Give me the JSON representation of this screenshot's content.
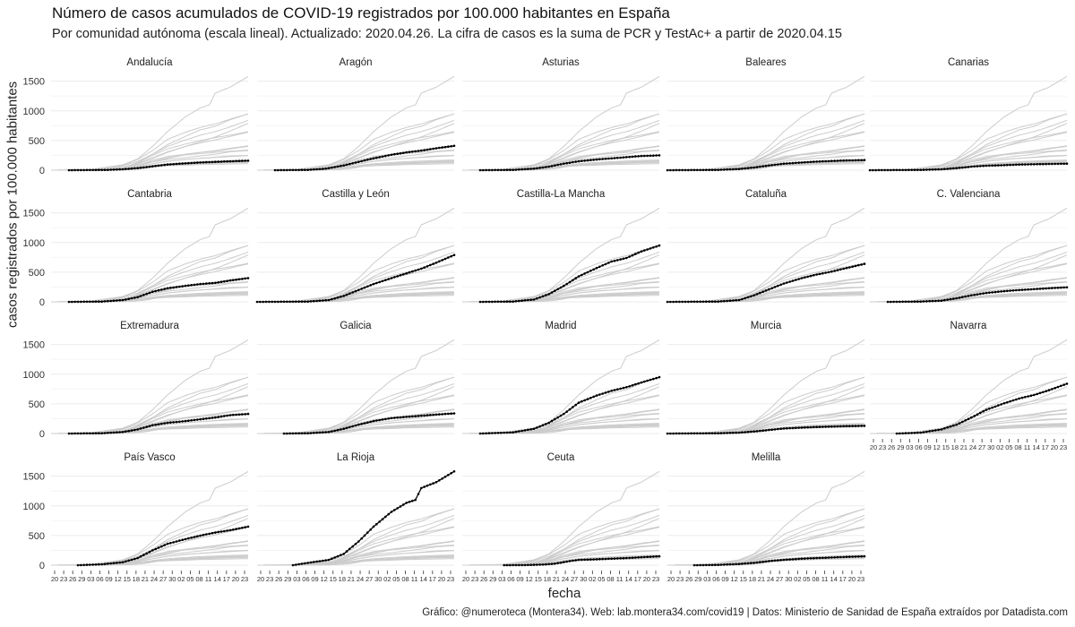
{
  "title": "Número de casos acumulados de COVID-19 registrados por 100.000 habitantes en España",
  "subtitle": "Por comunidad autónoma (escala lineal). Actualizado: 2020.04.26. La cifra de casos es la suma de PCR y TestAc+ a partir de 2020.04.15",
  "caption": "Gráfico: @numeroteca (Montera34). Web: lab.montera34.com/covid19 | Datos: Ministerio de Sanidad de España extraídos por Datadista.com",
  "colors": {
    "highlight": "#000000",
    "background_lines": "#cccccc",
    "grid": "#ebebeb"
  },
  "chart_data": {
    "type": "line",
    "xlabel": "fecha",
    "ylabel": "casos registrados por 100.000 habitantes",
    "ylim": [
      0,
      1600
    ],
    "yticks": [
      0,
      500,
      1000,
      1500
    ],
    "xlim": [
      "2020-02-20",
      "2020-04-26"
    ],
    "xticks": [
      "20",
      "23",
      "26",
      "29",
      "03",
      "06",
      "09",
      "12",
      "15",
      "18",
      "21",
      "24",
      "27",
      "30",
      "02",
      "05",
      "08",
      "11",
      "14",
      "17",
      "20",
      "23"
    ],
    "grid": true,
    "facets": "by region, 5 columns",
    "series": [
      {
        "name": "Andalucía",
        "start": "2020-02-26",
        "points": [
          [
            "2020-03-10",
            5
          ],
          [
            "2020-03-15",
            15
          ],
          [
            "2020-03-20",
            35
          ],
          [
            "2020-03-25",
            65
          ],
          [
            "2020-03-30",
            95
          ],
          [
            "2020-04-05",
            115
          ],
          [
            "2020-04-10",
            130
          ],
          [
            "2020-04-15",
            140
          ],
          [
            "2020-04-20",
            150
          ],
          [
            "2020-04-26",
            160
          ]
        ]
      },
      {
        "name": "Aragón",
        "start": "2020-02-26",
        "points": [
          [
            "2020-03-08",
            5
          ],
          [
            "2020-03-14",
            25
          ],
          [
            "2020-03-20",
            80
          ],
          [
            "2020-03-25",
            140
          ],
          [
            "2020-03-30",
            200
          ],
          [
            "2020-04-05",
            260
          ],
          [
            "2020-04-10",
            300
          ],
          [
            "2020-04-15",
            330
          ],
          [
            "2020-04-20",
            370
          ],
          [
            "2020-04-26",
            410
          ]
        ]
      },
      {
        "name": "Asturias",
        "start": "2020-02-26",
        "points": [
          [
            "2020-03-08",
            5
          ],
          [
            "2020-03-15",
            25
          ],
          [
            "2020-03-20",
            60
          ],
          [
            "2020-03-25",
            110
          ],
          [
            "2020-03-30",
            150
          ],
          [
            "2020-04-05",
            180
          ],
          [
            "2020-04-10",
            200
          ],
          [
            "2020-04-15",
            220
          ],
          [
            "2020-04-20",
            240
          ],
          [
            "2020-04-26",
            250
          ]
        ]
      },
      {
        "name": "Baleares",
        "start": "2020-02-20",
        "points": [
          [
            "2020-03-08",
            5
          ],
          [
            "2020-03-15",
            20
          ],
          [
            "2020-03-20",
            45
          ],
          [
            "2020-03-25",
            80
          ],
          [
            "2020-03-30",
            110
          ],
          [
            "2020-04-05",
            130
          ],
          [
            "2020-04-10",
            145
          ],
          [
            "2020-04-15",
            155
          ],
          [
            "2020-04-20",
            165
          ],
          [
            "2020-04-26",
            170
          ]
        ]
      },
      {
        "name": "Canarias",
        "start": "2020-02-20",
        "points": [
          [
            "2020-03-08",
            5
          ],
          [
            "2020-03-15",
            15
          ],
          [
            "2020-03-20",
            35
          ],
          [
            "2020-03-25",
            60
          ],
          [
            "2020-03-30",
            75
          ],
          [
            "2020-04-05",
            85
          ],
          [
            "2020-04-10",
            95
          ],
          [
            "2020-04-15",
            100
          ],
          [
            "2020-04-20",
            105
          ],
          [
            "2020-04-26",
            110
          ]
        ]
      },
      {
        "name": "Cantabria",
        "start": "2020-02-26",
        "points": [
          [
            "2020-03-08",
            5
          ],
          [
            "2020-03-15",
            30
          ],
          [
            "2020-03-20",
            80
          ],
          [
            "2020-03-25",
            170
          ],
          [
            "2020-03-30",
            230
          ],
          [
            "2020-04-05",
            270
          ],
          [
            "2020-04-10",
            300
          ],
          [
            "2020-04-15",
            320
          ],
          [
            "2020-04-20",
            360
          ],
          [
            "2020-04-26",
            400
          ]
        ]
      },
      {
        "name": "Castilla y León",
        "start": "2020-02-20",
        "points": [
          [
            "2020-03-08",
            5
          ],
          [
            "2020-03-15",
            30
          ],
          [
            "2020-03-20",
            100
          ],
          [
            "2020-03-25",
            200
          ],
          [
            "2020-03-30",
            300
          ],
          [
            "2020-04-05",
            400
          ],
          [
            "2020-04-10",
            480
          ],
          [
            "2020-04-15",
            560
          ],
          [
            "2020-04-20",
            660
          ],
          [
            "2020-04-26",
            790
          ]
        ]
      },
      {
        "name": "Castilla-La Mancha",
        "start": "2020-02-26",
        "points": [
          [
            "2020-03-08",
            5
          ],
          [
            "2020-03-15",
            40
          ],
          [
            "2020-03-20",
            130
          ],
          [
            "2020-03-25",
            270
          ],
          [
            "2020-03-30",
            430
          ],
          [
            "2020-04-05",
            570
          ],
          [
            "2020-04-10",
            680
          ],
          [
            "2020-04-15",
            740
          ],
          [
            "2020-04-20",
            850
          ],
          [
            "2020-04-26",
            950
          ]
        ]
      },
      {
        "name": "Cataluña",
        "start": "2020-02-20",
        "points": [
          [
            "2020-03-08",
            5
          ],
          [
            "2020-03-15",
            30
          ],
          [
            "2020-03-20",
            110
          ],
          [
            "2020-03-25",
            210
          ],
          [
            "2020-03-30",
            310
          ],
          [
            "2020-04-05",
            400
          ],
          [
            "2020-04-10",
            460
          ],
          [
            "2020-04-15",
            510
          ],
          [
            "2020-04-20",
            570
          ],
          [
            "2020-04-26",
            640
          ]
        ]
      },
      {
        "name": "C. Valenciana",
        "start": "2020-02-26",
        "points": [
          [
            "2020-03-08",
            5
          ],
          [
            "2020-03-15",
            20
          ],
          [
            "2020-03-20",
            60
          ],
          [
            "2020-03-25",
            110
          ],
          [
            "2020-03-30",
            150
          ],
          [
            "2020-04-05",
            180
          ],
          [
            "2020-04-10",
            200
          ],
          [
            "2020-04-15",
            215
          ],
          [
            "2020-04-20",
            230
          ],
          [
            "2020-04-26",
            245
          ]
        ]
      },
      {
        "name": "Extremadura",
        "start": "2020-02-26",
        "points": [
          [
            "2020-03-08",
            5
          ],
          [
            "2020-03-15",
            25
          ],
          [
            "2020-03-20",
            70
          ],
          [
            "2020-03-25",
            140
          ],
          [
            "2020-03-30",
            180
          ],
          [
            "2020-04-05",
            210
          ],
          [
            "2020-04-10",
            240
          ],
          [
            "2020-04-15",
            270
          ],
          [
            "2020-04-20",
            310
          ],
          [
            "2020-04-26",
            330
          ]
        ]
      },
      {
        "name": "Galicia",
        "start": "2020-02-29",
        "points": [
          [
            "2020-03-08",
            5
          ],
          [
            "2020-03-15",
            25
          ],
          [
            "2020-03-20",
            80
          ],
          [
            "2020-03-25",
            150
          ],
          [
            "2020-03-30",
            210
          ],
          [
            "2020-04-05",
            260
          ],
          [
            "2020-04-10",
            280
          ],
          [
            "2020-04-15",
            300
          ],
          [
            "2020-04-20",
            320
          ],
          [
            "2020-04-26",
            340
          ]
        ]
      },
      {
        "name": "Madrid",
        "start": "2020-02-26",
        "points": [
          [
            "2020-03-08",
            20
          ],
          [
            "2020-03-15",
            80
          ],
          [
            "2020-03-20",
            180
          ],
          [
            "2020-03-25",
            330
          ],
          [
            "2020-03-30",
            520
          ],
          [
            "2020-04-05",
            640
          ],
          [
            "2020-04-10",
            720
          ],
          [
            "2020-04-15",
            780
          ],
          [
            "2020-04-20",
            860
          ],
          [
            "2020-04-26",
            950
          ]
        ]
      },
      {
        "name": "Murcia",
        "start": "2020-02-20",
        "points": [
          [
            "2020-03-08",
            5
          ],
          [
            "2020-03-15",
            15
          ],
          [
            "2020-03-20",
            35
          ],
          [
            "2020-03-25",
            60
          ],
          [
            "2020-03-30",
            85
          ],
          [
            "2020-04-05",
            100
          ],
          [
            "2020-04-10",
            110
          ],
          [
            "2020-04-15",
            118
          ],
          [
            "2020-04-20",
            125
          ],
          [
            "2020-04-26",
            130
          ]
        ]
      },
      {
        "name": "Navarra",
        "start": "2020-02-29",
        "points": [
          [
            "2020-03-08",
            15
          ],
          [
            "2020-03-15",
            70
          ],
          [
            "2020-03-20",
            150
          ],
          [
            "2020-03-25",
            270
          ],
          [
            "2020-03-30",
            400
          ],
          [
            "2020-04-05",
            510
          ],
          [
            "2020-04-10",
            590
          ],
          [
            "2020-04-15",
            650
          ],
          [
            "2020-04-20",
            730
          ],
          [
            "2020-04-26",
            840
          ]
        ]
      },
      {
        "name": "País Vasco",
        "start": "2020-02-29",
        "points": [
          [
            "2020-03-08",
            15
          ],
          [
            "2020-03-15",
            50
          ],
          [
            "2020-03-20",
            120
          ],
          [
            "2020-03-25",
            250
          ],
          [
            "2020-03-30",
            360
          ],
          [
            "2020-04-05",
            440
          ],
          [
            "2020-04-10",
            500
          ],
          [
            "2020-04-15",
            550
          ],
          [
            "2020-04-20",
            590
          ],
          [
            "2020-04-26",
            650
          ]
        ]
      },
      {
        "name": "La Rioja",
        "start": "2020-03-03",
        "points": [
          [
            "2020-03-08",
            40
          ],
          [
            "2020-03-15",
            90
          ],
          [
            "2020-03-20",
            190
          ],
          [
            "2020-03-25",
            400
          ],
          [
            "2020-03-30",
            650
          ],
          [
            "2020-04-05",
            900
          ],
          [
            "2020-04-10",
            1050
          ],
          [
            "2020-04-13",
            1100
          ],
          [
            "2020-04-15",
            1300
          ],
          [
            "2020-04-20",
            1400
          ],
          [
            "2020-04-26",
            1580
          ]
        ]
      },
      {
        "name": "Ceuta",
        "start": "2020-03-05",
        "points": [
          [
            "2020-03-12",
            2
          ],
          [
            "2020-03-18",
            10
          ],
          [
            "2020-03-22",
            25
          ],
          [
            "2020-03-27",
            70
          ],
          [
            "2020-03-30",
            90
          ],
          [
            "2020-04-05",
            100
          ],
          [
            "2020-04-10",
            110
          ],
          [
            "2020-04-15",
            120
          ],
          [
            "2020-04-20",
            135
          ],
          [
            "2020-04-26",
            150
          ]
        ]
      },
      {
        "name": "Melilla",
        "start": "2020-02-29",
        "points": [
          [
            "2020-03-08",
            5
          ],
          [
            "2020-03-15",
            20
          ],
          [
            "2020-03-20",
            40
          ],
          [
            "2020-03-25",
            70
          ],
          [
            "2020-03-30",
            90
          ],
          [
            "2020-04-05",
            110
          ],
          [
            "2020-04-10",
            120
          ],
          [
            "2020-04-15",
            130
          ],
          [
            "2020-04-20",
            140
          ],
          [
            "2020-04-26",
            150
          ]
        ]
      }
    ]
  }
}
